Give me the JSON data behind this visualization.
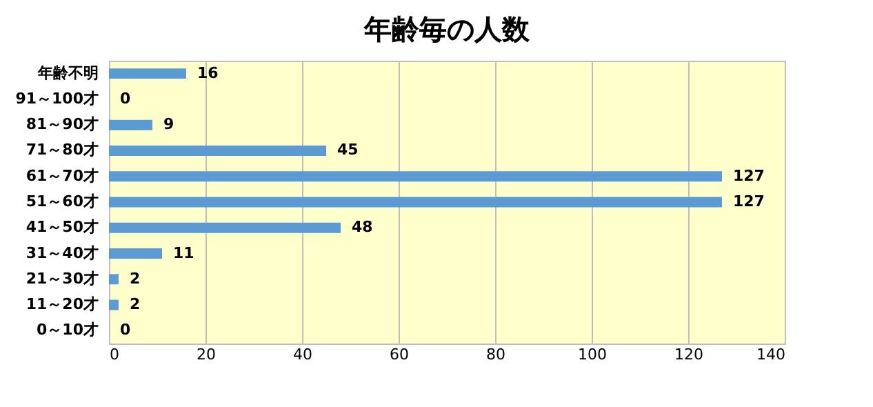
{
  "chart_data": {
    "type": "bar",
    "orientation": "horizontal",
    "title": "年齢毎の人数",
    "categories": [
      "年齢不明",
      "91～100才",
      "81～90才",
      "71～80才",
      "61～70才",
      "51～60才",
      "41～50才",
      "31～40才",
      "21～30才",
      "11～20才",
      "0～10才"
    ],
    "values": [
      16,
      0,
      9,
      45,
      127,
      127,
      48,
      11,
      2,
      2,
      0
    ],
    "color": "#5b9bd5",
    "xlim": [
      0,
      140
    ],
    "xticks": [
      0,
      20,
      40,
      60,
      80,
      100,
      120,
      140
    ],
    "grid": "x",
    "data_labels": true
  }
}
